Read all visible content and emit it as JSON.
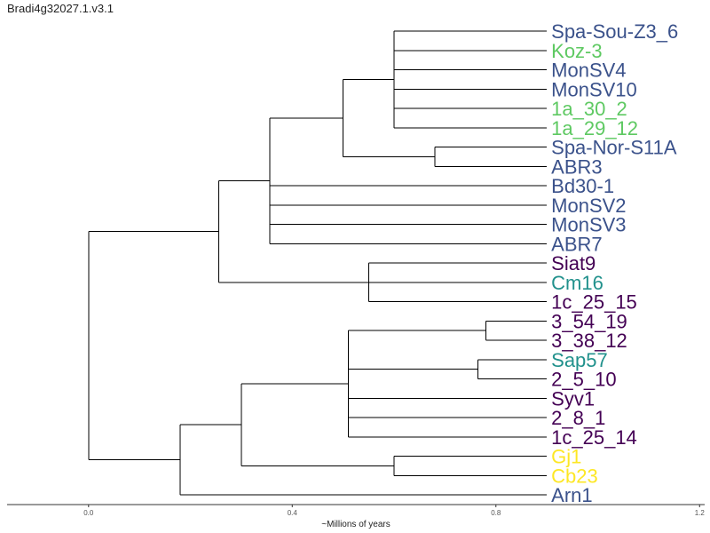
{
  "title": "Bradi4g32027.1.v3.1",
  "chart_data": {
    "type": "tree",
    "xlabel": "~Millions of years",
    "xlim": [
      -0.16,
      1.21
    ],
    "xticks": [
      0.0,
      0.4,
      0.8,
      1.2
    ],
    "xtick_labels": [
      "0.0",
      "0.4",
      "0.8",
      "1.2"
    ],
    "colors": {
      "blue": "#3b528b",
      "green": "#5ec962",
      "purple": "#440154",
      "teal": "#21918c",
      "yellow": "#fde725"
    },
    "leaves": [
      {
        "name": "Spa-Sou-Z3_6",
        "color": "blue"
      },
      {
        "name": "Koz-3",
        "color": "green"
      },
      {
        "name": "MonSV4",
        "color": "blue"
      },
      {
        "name": "MonSV10",
        "color": "blue"
      },
      {
        "name": "1a_30_2",
        "color": "green"
      },
      {
        "name": "1a_29_12",
        "color": "green"
      },
      {
        "name": "Spa-Nor-S11A",
        "color": "blue"
      },
      {
        "name": "ABR3",
        "color": "blue"
      },
      {
        "name": "Bd30-1",
        "color": "blue"
      },
      {
        "name": "MonSV2",
        "color": "blue"
      },
      {
        "name": "MonSV3",
        "color": "blue"
      },
      {
        "name": "ABR7",
        "color": "blue"
      },
      {
        "name": "Siat9",
        "color": "purple"
      },
      {
        "name": "Cm16",
        "color": "teal"
      },
      {
        "name": "1c_25_15",
        "color": "purple"
      },
      {
        "name": "3_54_19",
        "color": "purple"
      },
      {
        "name": "3_38_12",
        "color": "purple"
      },
      {
        "name": "Sap57",
        "color": "teal"
      },
      {
        "name": "2_5_10",
        "color": "purple"
      },
      {
        "name": "Syv1",
        "color": "purple"
      },
      {
        "name": "2_8_1",
        "color": "purple"
      },
      {
        "name": "1c_25_14",
        "color": "purple"
      },
      {
        "name": "Gj1",
        "color": "yellow"
      },
      {
        "name": "Cb23",
        "color": "yellow"
      },
      {
        "name": "Arn1",
        "color": "blue"
      }
    ],
    "leaf_depth": 0.9,
    "tree": {
      "h": 0.0,
      "children": [
        {
          "h": 0.256,
          "children": [
            {
              "h": 0.356,
              "children": [
                {
                  "h": 0.5,
                  "children": [
                    {
                      "h": 0.6,
                      "children": [
                        {
                          "leaf": 0
                        },
                        {
                          "leaf": 1
                        },
                        {
                          "leaf": 2
                        },
                        {
                          "leaf": 3
                        },
                        {
                          "leaf": 4
                        },
                        {
                          "leaf": 5
                        }
                      ]
                    },
                    {
                      "h": 0.68,
                      "children": [
                        {
                          "leaf": 6
                        },
                        {
                          "leaf": 7
                        }
                      ]
                    }
                  ]
                },
                {
                  "leaf": 8
                },
                {
                  "leaf": 9
                },
                {
                  "leaf": 10
                },
                {
                  "leaf": 11
                }
              ]
            },
            {
              "h": 0.55,
              "children": [
                {
                  "leaf": 12
                },
                {
                  "leaf": 13
                },
                {
                  "leaf": 14
                }
              ]
            }
          ]
        },
        {
          "h": 0.18,
          "children": [
            {
              "h": 0.3,
              "children": [
                {
                  "h": 0.51,
                  "children": [
                    {
                      "h": 0.78,
                      "children": [
                        {
                          "leaf": 15
                        },
                        {
                          "leaf": 16
                        }
                      ]
                    },
                    {
                      "h": 0.765,
                      "children": [
                        {
                          "leaf": 17
                        },
                        {
                          "leaf": 18
                        }
                      ]
                    },
                    {
                      "leaf": 19
                    },
                    {
                      "leaf": 20
                    },
                    {
                      "leaf": 21
                    }
                  ]
                },
                {
                  "h": 0.6,
                  "children": [
                    {
                      "leaf": 22
                    },
                    {
                      "leaf": 23
                    }
                  ]
                }
              ]
            },
            {
              "leaf": 24
            }
          ]
        }
      ]
    }
  }
}
